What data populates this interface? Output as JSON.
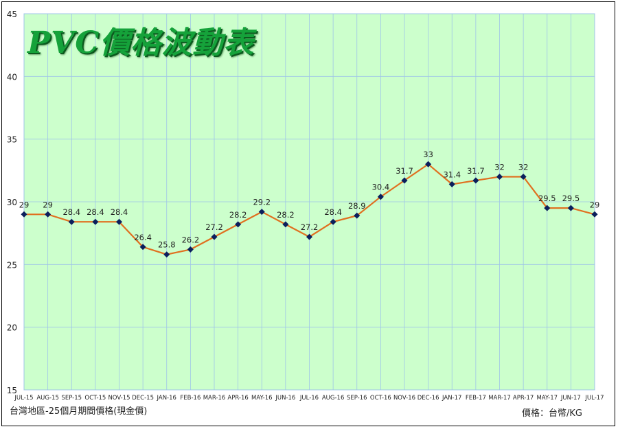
{
  "chart_data": {
    "type": "line",
    "title": "PVC價格波動表",
    "categories": [
      "JUL-15",
      "AUG-15",
      "SEP-15",
      "OCT-15",
      "NOV-15",
      "DEC-15",
      "JAN-16",
      "FEB-16",
      "MAR-16",
      "APR-16",
      "MAY-16",
      "JUN-16",
      "JUL-16",
      "AUG-16",
      "SEP-16",
      "OCT-16",
      "NOV-16",
      "DEC-16",
      "JAN-17",
      "FEB-17",
      "MAR-17",
      "APR-17",
      "MAY-17",
      "JUN-17",
      "JUL-17"
    ],
    "series": [
      {
        "values": [
          29,
          29,
          28.4,
          28.4,
          28.4,
          26.4,
          25.8,
          26.2,
          27.2,
          28.2,
          29.2,
          28.2,
          27.2,
          28.4,
          28.9,
          30.4,
          31.7,
          33,
          31.4,
          31.7,
          32,
          32,
          29.5,
          29.5,
          29
        ]
      }
    ],
    "data_labels": [
      "29",
      "29",
      "28.4",
      "28.4",
      "28.4",
      "26.4",
      "25.8",
      "26.2",
      "27.2",
      "28.2",
      "29.2",
      "28.2",
      "27.2",
      "28.4",
      "28.9",
      "30.4",
      "31.7",
      "33",
      "31.4",
      "31.7",
      "32",
      "32",
      "29.5",
      "29.5",
      "29"
    ],
    "ylim": [
      15,
      45
    ],
    "yticks": [
      15,
      20,
      25,
      30,
      35,
      40,
      45
    ],
    "grid": true,
    "line_color": "#e07020",
    "marker_color": "#0b1f5c",
    "plot_bg": "#ccffcc",
    "grid_color": "#9fc4e8"
  },
  "footer": {
    "left": "台灣地區-25個月期間價格(現金價)",
    "right": "價格：台幣/KG"
  }
}
